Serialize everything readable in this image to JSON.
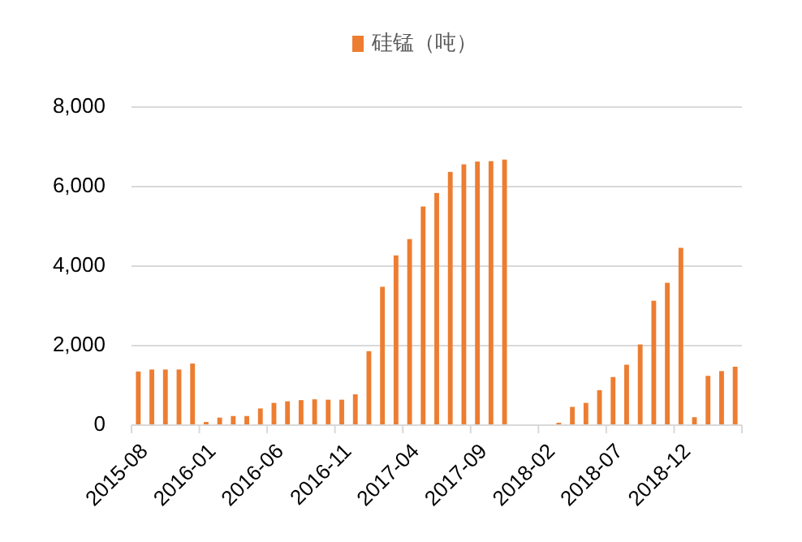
{
  "chart_data": {
    "type": "bar",
    "categories": [
      "2015-08",
      null,
      null,
      null,
      null,
      "2016-01",
      null,
      null,
      null,
      null,
      "2016-06",
      null,
      null,
      null,
      null,
      "2016-11",
      null,
      null,
      null,
      null,
      "2017-04",
      null,
      null,
      null,
      null,
      "2017-09",
      null,
      null,
      null,
      null,
      "2018-02",
      null,
      null,
      null,
      null,
      "2018-07",
      null,
      null,
      null,
      null,
      "2018-12",
      null,
      null,
      null,
      null
    ],
    "series": [
      {
        "name": "硅锰（吨）",
        "color": "#ed7d31",
        "values": [
          1350,
          1400,
          1400,
          1400,
          1550,
          80,
          190,
          230,
          230,
          420,
          560,
          600,
          630,
          650,
          640,
          640,
          775,
          1860,
          3480,
          4270,
          4680,
          5500,
          5840,
          6370,
          6560,
          6630,
          6640,
          6680,
          null,
          null,
          null,
          60,
          460,
          560,
          880,
          1210,
          1520,
          2030,
          3130,
          3580,
          4460,
          200,
          1240,
          1360,
          1470
        ]
      }
    ],
    "ylim": [
      0,
      8000
    ],
    "yticks": [
      {
        "value": 0,
        "label": "0"
      },
      {
        "value": 2000,
        "label": "2,000"
      },
      {
        "value": 4000,
        "label": "4,000"
      },
      {
        "value": 6000,
        "label": "6,000"
      },
      {
        "value": 8000,
        "label": "8,000"
      }
    ],
    "grid": "y",
    "legend": "top"
  }
}
